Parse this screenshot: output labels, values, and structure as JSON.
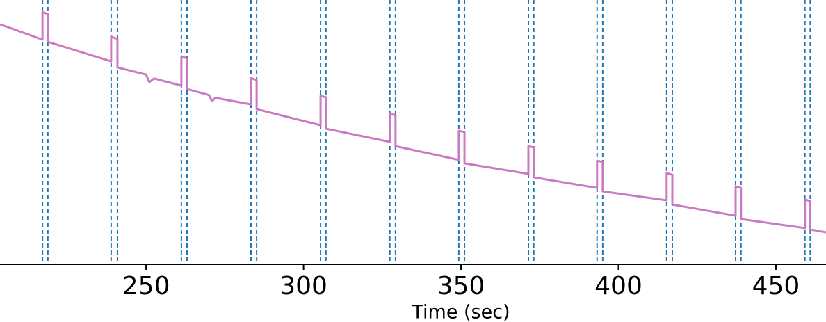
{
  "chart_data": {
    "type": "line",
    "x_label": "Time (sec)",
    "xlim": [
      203.6,
      465.9
    ],
    "ylim": [
      0,
      100
    ],
    "xticks": [
      250,
      300,
      350,
      400,
      450
    ],
    "vlines": [
      217.1,
      218.8,
      238.9,
      240.9,
      261.2,
      263.0,
      283.3,
      285.1,
      305.4,
      307.1,
      327.4,
      329.2,
      349.3,
      351.1,
      371.4,
      373.1,
      393.2,
      395.0,
      415.3,
      417.1,
      437.2,
      438.9,
      459.2,
      460.9
    ],
    "vline_color": "#1f77b4",
    "x": [
      203.6,
      217.1,
      217.1,
      218.8,
      218.8,
      238.9,
      238.9,
      240.9,
      240.9,
      250.0,
      251.0,
      252.5,
      261.2,
      261.2,
      263.0,
      263.0,
      270.0,
      270.9,
      272.0,
      283.3,
      283.3,
      285.1,
      285.1,
      305.4,
      305.4,
      307.1,
      307.1,
      327.4,
      327.4,
      329.2,
      329.2,
      349.3,
      349.3,
      351.1,
      351.1,
      371.4,
      371.4,
      373.1,
      373.1,
      393.2,
      393.2,
      395.0,
      395.0,
      415.3,
      415.3,
      417.1,
      417.1,
      437.2,
      437.2,
      438.9,
      438.9,
      459.2,
      459.2,
      460.9,
      460.9,
      465.9
    ],
    "series": [
      {
        "color": "#cc79c4",
        "values": [
          90.8,
          85.0,
          95.5,
          94.7,
          84.2,
          76.8,
          86.1,
          85.3,
          74.5,
          71.8,
          68.9,
          70.3,
          67.6,
          78.7,
          77.9,
          66.3,
          64.0,
          61.8,
          63.0,
          60.5,
          70.5,
          69.7,
          58.7,
          52.6,
          63.7,
          63.2,
          51.3,
          46.3,
          57.1,
          56.3,
          44.7,
          39.5,
          50.5,
          50.0,
          38.2,
          34.2,
          44.7,
          44.2,
          32.9,
          28.9,
          39.2,
          38.7,
          27.6,
          24.2,
          34.5,
          33.9,
          22.6,
          18.4,
          29.5,
          28.9,
          17.1,
          13.7,
          24.5,
          23.9,
          13.2,
          12.1
        ]
      }
    ]
  }
}
